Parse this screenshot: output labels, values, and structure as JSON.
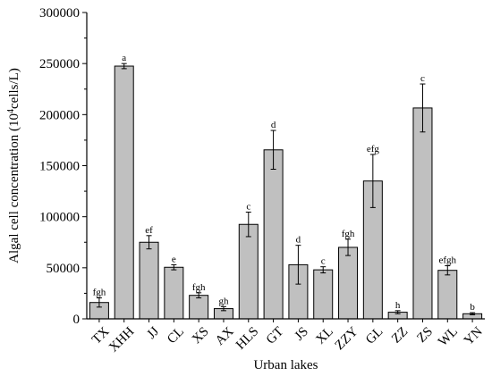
{
  "chart_data": {
    "type": "bar",
    "title": "",
    "xlabel": "Urban lakes",
    "ylabel": "Algal cell concentration (10",
    "ylabel_sup": "4",
    "ylabel_unit": "cells/L)",
    "ylim": [
      0,
      300000
    ],
    "yticks": [
      "0",
      "50000",
      "100000",
      "150000",
      "200000",
      "250000",
      "300000"
    ],
    "ytick_values": [
      0,
      50000,
      100000,
      150000,
      200000,
      250000,
      300000
    ],
    "categories": [
      "TX",
      "XHH",
      "JJ",
      "CL",
      "XS",
      "AX",
      "HLS",
      "GT",
      "JS",
      "XL",
      "ZZY",
      "GL",
      "ZZ",
      "ZS",
      "WL",
      "YN"
    ],
    "values": [
      16000,
      247500,
      75000,
      50500,
      23000,
      10000,
      92500,
      165500,
      53000,
      48000,
      70000,
      135000,
      6500,
      206500,
      47500,
      5000
    ],
    "errors": [
      4500,
      2500,
      6500,
      2500,
      2500,
      2000,
      12000,
      19000,
      19000,
      3000,
      8000,
      26000,
      1500,
      23500,
      4500,
      1000
    ],
    "significance": [
      "fgh",
      "a",
      "ef",
      "e",
      "fgh",
      "gh",
      "c",
      "d",
      "d",
      "c",
      "fgh",
      "efg",
      "h",
      "c",
      "efgh",
      "b"
    ],
    "colors": {
      "bar_fill": "#c0c0c0",
      "bar_stroke": "#000000"
    },
    "grid": false
  }
}
